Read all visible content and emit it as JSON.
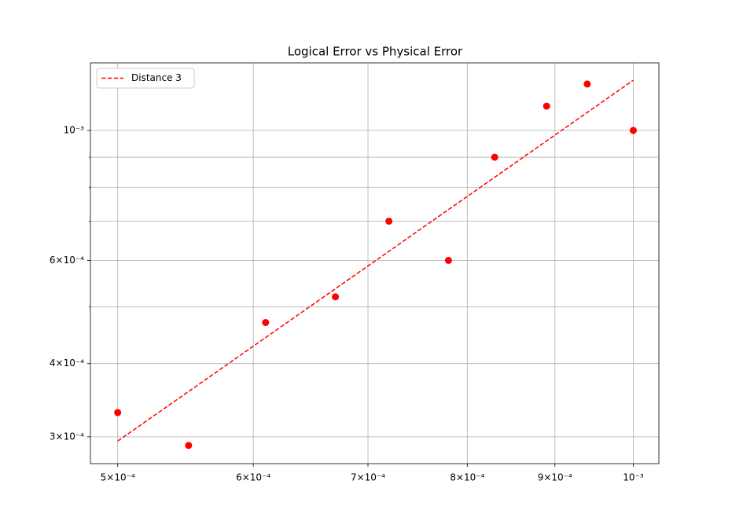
{
  "chart_data": {
    "type": "scatter",
    "title": "Logical Error vs Physical Error",
    "log_x": true,
    "log_y": true,
    "grid": true,
    "legend": "upper left",
    "points": {
      "color": "#ff0000",
      "x": [
        0.0005,
        0.00055,
        0.00061,
        0.00067,
        0.00072,
        0.00078,
        0.00083,
        0.00089,
        0.00094,
        0.001
      ],
      "values": [
        0.00033,
        0.00029,
        0.00047,
        0.00052,
        0.0007,
        0.0006,
        0.0009,
        0.0011,
        0.0012,
        0.001
      ]
    },
    "fit": {
      "name": "Distance 3",
      "color": "#ff0000",
      "linestyle": "dashed",
      "x": [
        0.0005,
        0.001
      ],
      "values": [
        0.000295,
        0.001218
      ]
    },
    "xlim": [
      0.000482,
      0.001035
    ],
    "ylim": [
      0.00027,
      0.001304
    ],
    "xticks": [
      {
        "value": 0.0005,
        "label": "5×10⁻⁴"
      },
      {
        "value": 0.0006,
        "label": "6×10⁻⁴"
      },
      {
        "value": 0.0007,
        "label": "7×10⁻⁴"
      },
      {
        "value": 0.0008,
        "label": "8×10⁻⁴"
      },
      {
        "value": 0.0009,
        "label": "9×10⁻⁴"
      },
      {
        "value": 0.001,
        "label": "10⁻³"
      }
    ],
    "yticks": [
      {
        "value": 0.0003,
        "label": "3×10⁻⁴"
      },
      {
        "value": 0.0004,
        "label": "4×10⁻⁴"
      },
      {
        "value": 0.0006,
        "label": "6×10⁻⁴"
      },
      {
        "value": 0.001,
        "label": "10⁻³"
      }
    ],
    "yminor_ticks": [
      0.0005,
      0.0007,
      0.0008,
      0.0009
    ]
  }
}
